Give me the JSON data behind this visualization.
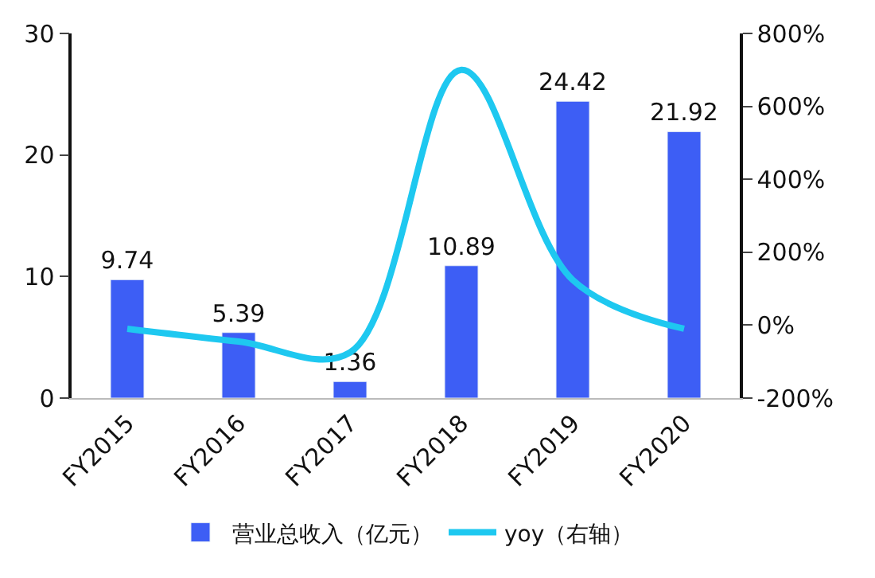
{
  "chart_data": {
    "type": "bar",
    "categories": [
      "FY2015",
      "FY2016",
      "FY2017",
      "FY2018",
      "FY2019",
      "FY2020"
    ],
    "series": [
      {
        "name": "营业总收入（亿元）",
        "color": "#3d5ef5",
        "values": [
          9.74,
          5.39,
          1.36,
          10.89,
          24.42,
          21.92
        ],
        "value_labels": [
          "9.74",
          "5.39",
          "1.36",
          "10.89",
          "24.42",
          "21.92"
        ]
      },
      {
        "name": "yoy（右轴）",
        "type": "line",
        "axis": "y2",
        "color": "#1ec8f0",
        "values": [
          -10,
          -45,
          -75,
          700,
          124,
          -10
        ]
      }
    ],
    "ylim": [
      0,
      30
    ],
    "yticks": [
      0,
      10,
      20,
      30
    ],
    "y2lim": [
      -200,
      800
    ],
    "y2ticks": [
      {
        "value": -200,
        "label": "-200%"
      },
      {
        "value": 0,
        "label": "0%"
      },
      {
        "value": 200,
        "label": "200%"
      },
      {
        "value": 400,
        "label": "400%"
      },
      {
        "value": 600,
        "label": "600%"
      },
      {
        "value": 800,
        "label": "800%"
      }
    ],
    "legend": "bottom",
    "marker": "none",
    "line_style": "solid"
  }
}
